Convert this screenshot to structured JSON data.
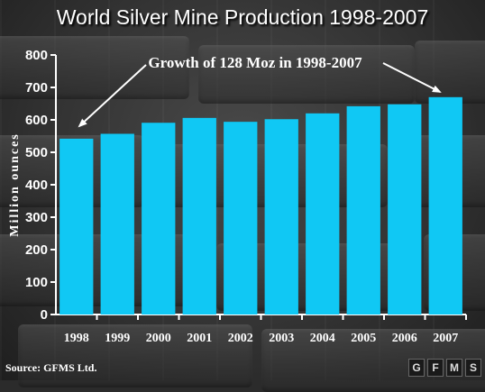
{
  "chart_data": {
    "type": "bar",
    "title": "World Silver Mine Production 1998-2007",
    "ylabel": "Million ounces",
    "categories": [
      "1998",
      "1999",
      "2000",
      "2001",
      "2002",
      "2003",
      "2004",
      "2005",
      "2006",
      "2007"
    ],
    "values": [
      542,
      557,
      591,
      606,
      594,
      602,
      620,
      642,
      648,
      670
    ],
    "ylim": [
      0,
      800
    ],
    "yticks": [
      0,
      100,
      200,
      300,
      400,
      500,
      600,
      700,
      800
    ],
    "annotation": "Growth of 128 Moz in 1998-2007",
    "bar_color": "#10c8f4",
    "grid": false,
    "legend": "none"
  },
  "source": "Source: GFMS Ltd.",
  "logo_letters": [
    "G",
    "F",
    "M",
    "S"
  ]
}
